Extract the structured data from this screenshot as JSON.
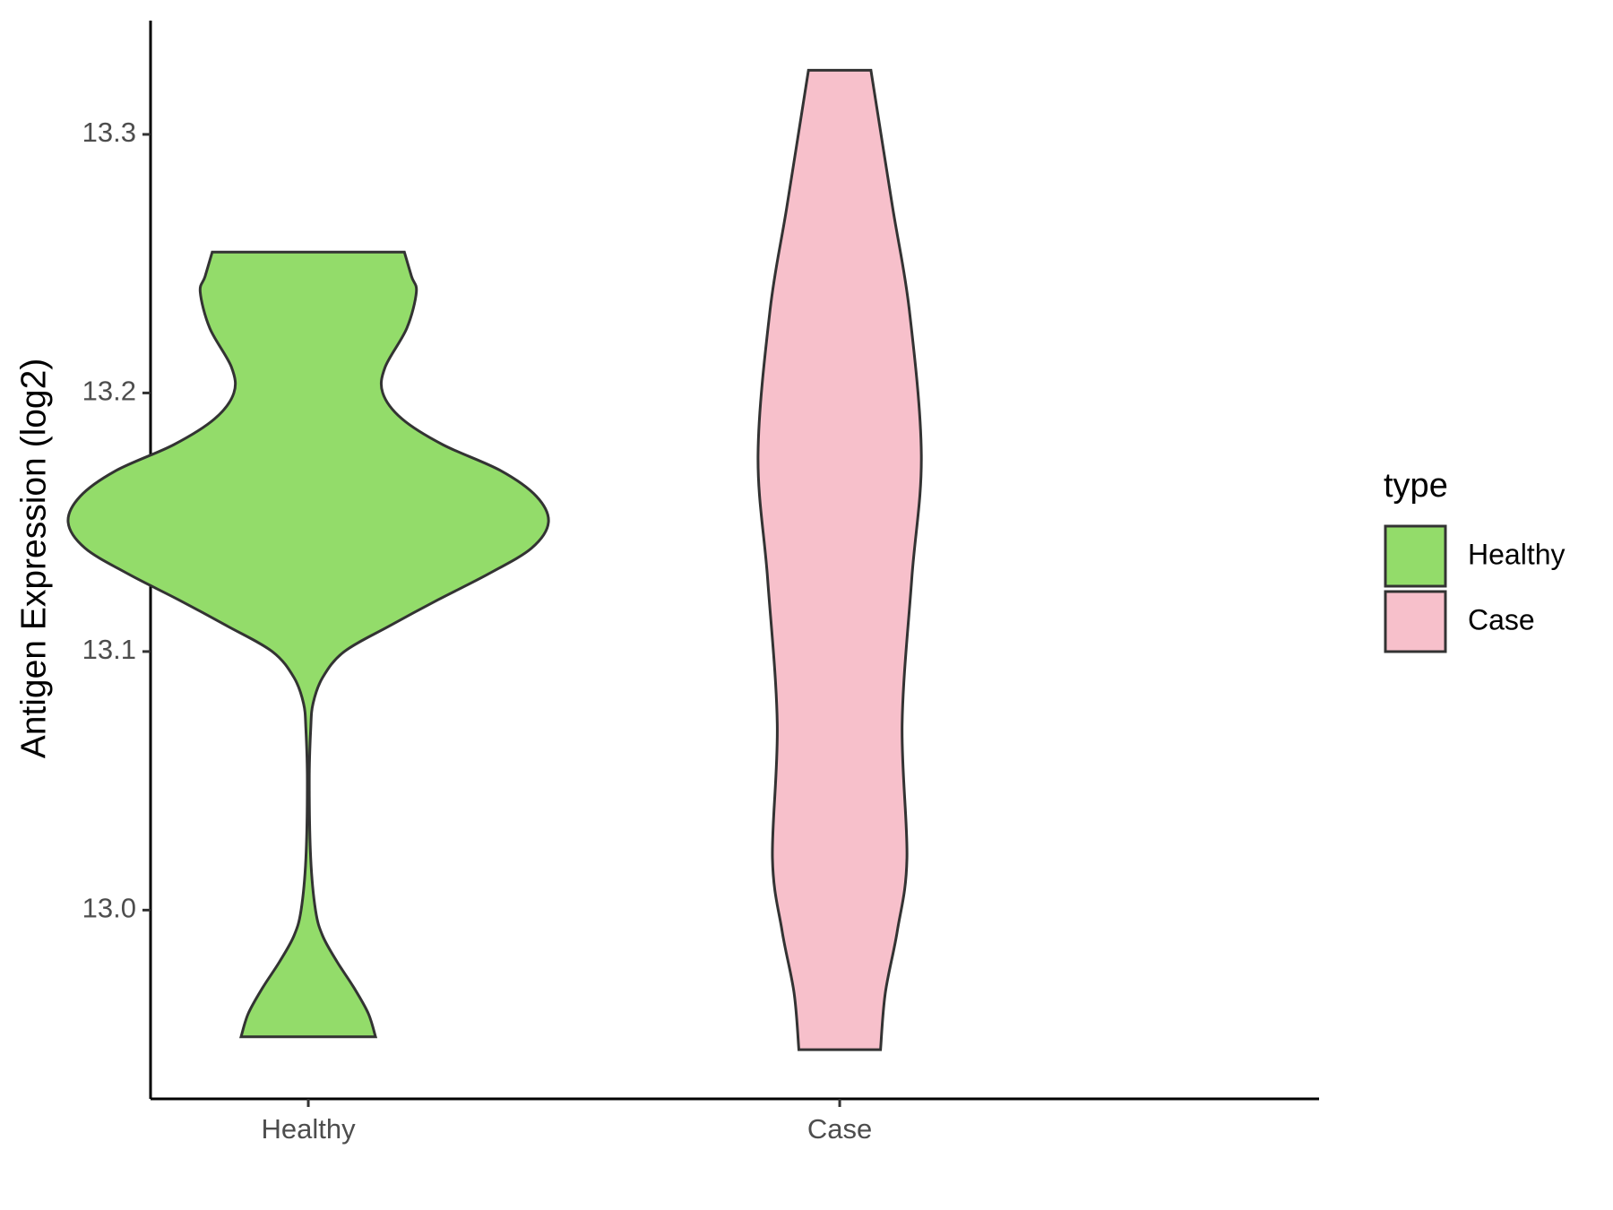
{
  "chart_data": {
    "type": "violin",
    "y_label": "Antigen Expression (log2)",
    "categories": [
      "Healthy",
      "Case"
    ],
    "ylim": [
      12.927,
      13.344
    ],
    "yticks": [
      {
        "value": 13,
        "label": "13.0"
      },
      13.1,
      13.2,
      13.3
    ],
    "legend_title": "type",
    "legend_position": "right",
    "series": [
      {
        "name": "Healthy",
        "color": "#93dc6a",
        "y": [
          13.2545,
          13.245,
          13.239,
          13.225,
          13.21,
          13.2,
          13.19,
          13.18,
          13.17,
          13.16,
          13.15,
          13.14,
          13.13,
          13.12,
          13.11,
          13.1,
          13.09,
          13.08,
          13.07,
          13.05,
          13.02,
          13.0,
          12.99,
          12.98,
          12.97,
          12.96,
          12.951
        ],
        "width": [
          0.4,
          0.43,
          0.45,
          0.41,
          0.32,
          0.31,
          0.39,
          0.56,
          0.8,
          0.95,
          1.0,
          0.93,
          0.75,
          0.54,
          0.34,
          0.15,
          0.06,
          0.02,
          0.01,
          0.004,
          0.01,
          0.03,
          0.06,
          0.12,
          0.19,
          0.25,
          0.28
        ]
      },
      {
        "name": "Case",
        "color": "#f7c0cb",
        "y": [
          13.3248,
          13.272,
          13.232,
          13.176,
          13.128,
          13.072,
          13.02,
          12.992,
          12.968,
          12.946
        ],
        "width": [
          0.13,
          0.22,
          0.29,
          0.34,
          0.3,
          0.26,
          0.28,
          0.24,
          0.19,
          0.17
        ]
      }
    ]
  }
}
